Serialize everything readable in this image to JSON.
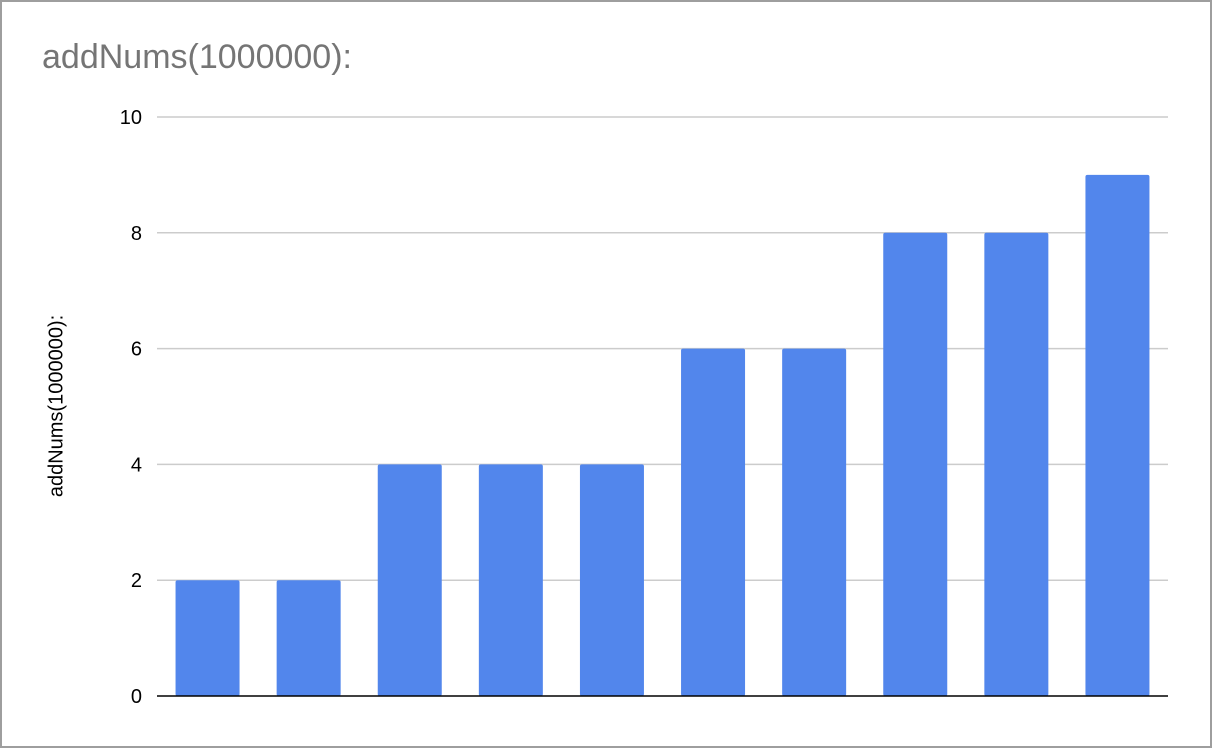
{
  "chart_data": {
    "type": "bar",
    "title": "addNums(1000000):",
    "xlabel": "",
    "ylabel": "addNums(1000000):",
    "categories": [
      "",
      "",
      "",
      "",
      "",
      "",
      "",
      "",
      "",
      ""
    ],
    "values": [
      2,
      2,
      4,
      4,
      4,
      6,
      6,
      8,
      8,
      9
    ],
    "ylim": [
      0,
      10
    ],
    "yticks": [
      "0",
      "2",
      "4",
      "6",
      "8",
      "10"
    ],
    "grid": true,
    "legend": "none",
    "bar_color": "#5286ec",
    "grid_color": "#cccccc",
    "axis_color": "#000000"
  }
}
